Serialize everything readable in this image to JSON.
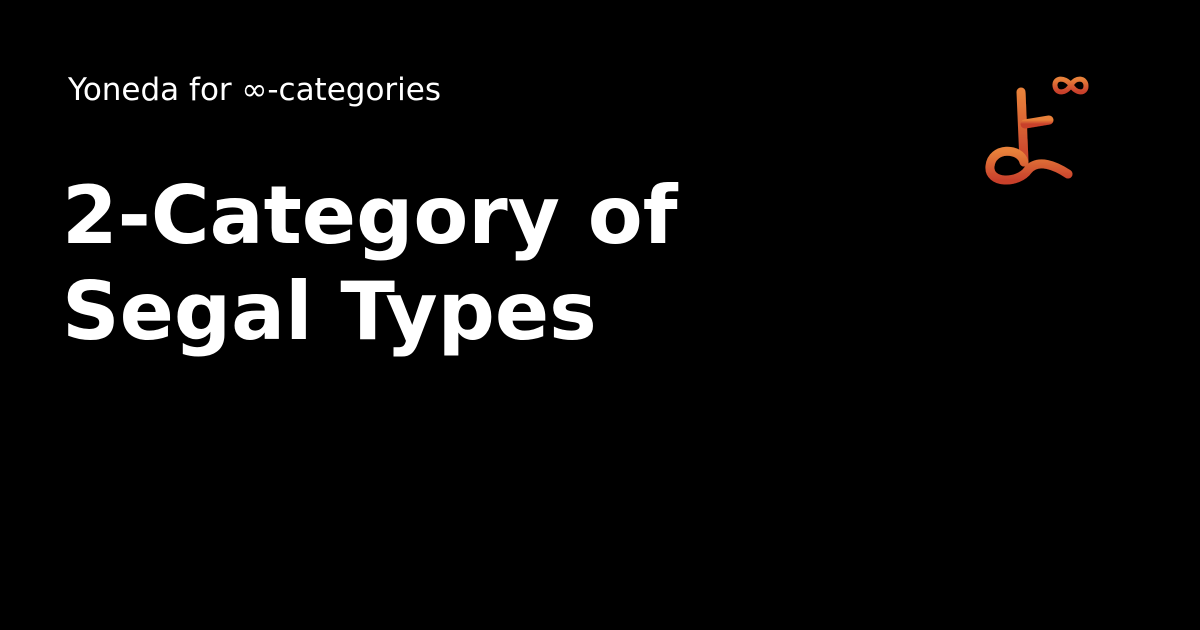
{
  "site": {
    "name": "Yoneda for ∞-categories"
  },
  "page": {
    "title": "2-Category of Segal Types"
  },
  "logo": {
    "glyph": "よ∞",
    "icon": "yoneda-infinity-logo-icon",
    "colors": {
      "top": "#e8813a",
      "bottom": "#c8402c"
    }
  },
  "theme": {
    "background": "#000000",
    "text": "#ffffff"
  }
}
